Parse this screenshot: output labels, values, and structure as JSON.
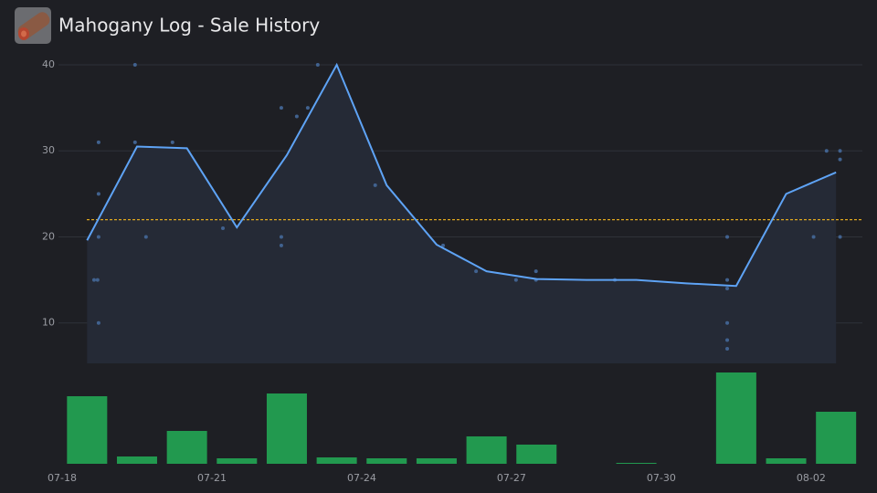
{
  "chart_data": {
    "type": "line",
    "title": "Mahogany Log - Sale History",
    "xlim": [
      0,
      16.32
    ],
    "xticks": [
      {
        "value": 0,
        "label": "07-18"
      },
      {
        "value": 3,
        "label": "07-21"
      },
      {
        "value": 6,
        "label": "07-24"
      },
      {
        "value": 9,
        "label": "07-27"
      },
      {
        "value": 12,
        "label": "07-30"
      },
      {
        "value": 15,
        "label": "08-02"
      }
    ],
    "ylim": [
      5.3,
      40
    ],
    "yticks": [
      10,
      20,
      30,
      40
    ],
    "grid": true,
    "average": 22,
    "average_color": "#e0a81e",
    "line": {
      "color": "#5ea3f5",
      "x": [
        0.5,
        1.5,
        2.5,
        3.5,
        4.5,
        5.5,
        6.5,
        7.5,
        8.5,
        9.5,
        10.5,
        11.5,
        12.5,
        13.5,
        14.5,
        15.5
      ],
      "values": [
        19.6,
        30.5,
        30.3,
        21.1,
        29.5,
        40,
        26,
        19.1,
        16,
        15.1,
        15.0,
        15.0,
        14.6,
        14.3,
        25,
        27.5
      ]
    },
    "points": {
      "color": "#41628f",
      "x": [
        0.64,
        0.71,
        0.73,
        0.73,
        0.73,
        0.73,
        1.46,
        1.46,
        1.68,
        2.21,
        3.22,
        4.39,
        4.39,
        4.39,
        4.7,
        4.92,
        5.12,
        6.27,
        7.63,
        8.29,
        9.09,
        9.49,
        9.49,
        11.07,
        13.32,
        13.32,
        13.32,
        13.32,
        13.32,
        13.32,
        15.05,
        15.31,
        15.58,
        15.58,
        15.58
      ],
      "values": [
        15,
        15,
        31,
        25,
        20,
        10,
        40,
        31,
        20,
        31,
        21,
        35,
        20,
        19,
        34,
        35,
        40,
        26,
        19,
        16,
        15,
        16,
        15,
        15,
        20,
        15,
        14,
        10,
        8,
        7,
        20,
        30,
        30,
        29,
        20
      ]
    },
    "volume": {
      "color": "#22994f",
      "ylim": [
        0,
        100
      ],
      "x": [
        0.5,
        1.5,
        2.5,
        3.5,
        4.5,
        5.5,
        6.5,
        7.5,
        8.5,
        9.5,
        11.5,
        13.5,
        14.5,
        15.5
      ],
      "values": [
        74,
        8,
        36,
        6,
        77,
        7,
        6,
        6,
        30,
        21,
        1,
        100,
        6,
        57
      ]
    }
  }
}
